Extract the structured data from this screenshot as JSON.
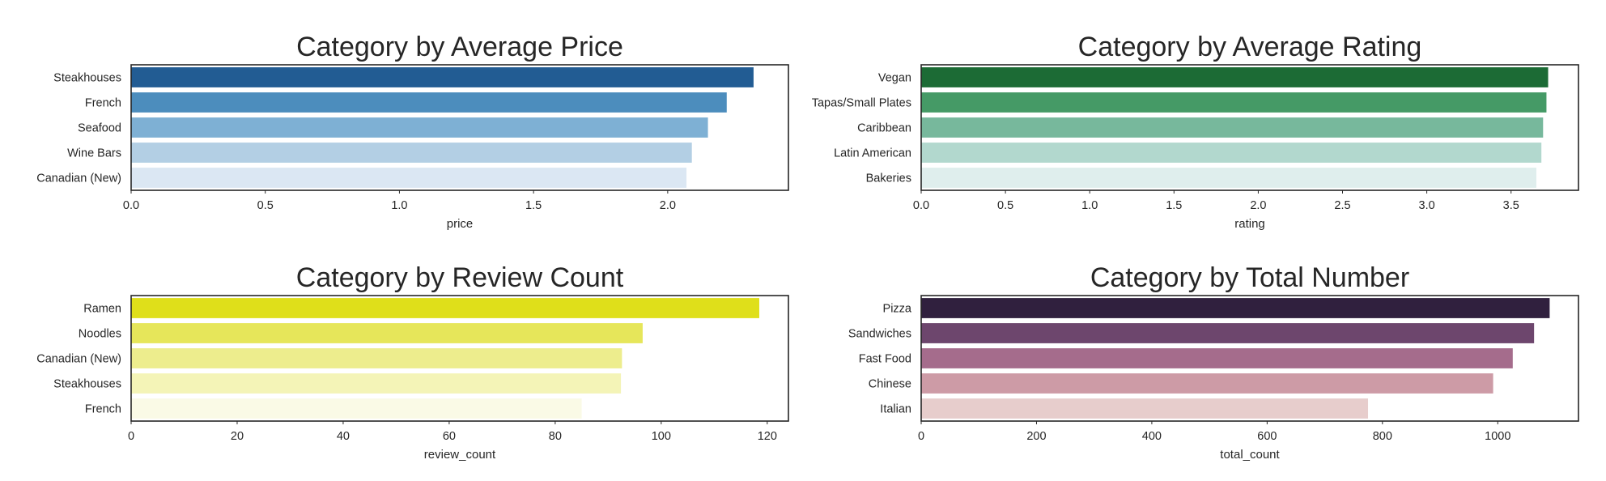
{
  "chart_data": [
    {
      "type": "bar",
      "orientation": "horizontal",
      "title": "Category by Average Price",
      "xlabel": "price",
      "ylabel": "",
      "categories": [
        "Steakhouses",
        "French",
        "Seafood",
        "Wine Bars",
        "Canadian (New)"
      ],
      "values": [
        2.32,
        2.22,
        2.15,
        2.09,
        2.07
      ],
      "xlim": [
        0,
        2.45
      ],
      "xticks": [
        0.0,
        0.5,
        1.0,
        1.5,
        2.0
      ],
      "xtick_labels": [
        "0.0",
        "0.5",
        "1.0",
        "1.5",
        "2.0"
      ],
      "colors": [
        "#225c93",
        "#4c8dbd",
        "#7eb0d4",
        "#b3cfe4",
        "#dbe7f3"
      ],
      "grid": false
    },
    {
      "type": "bar",
      "orientation": "horizontal",
      "title": "Category by Average Rating",
      "xlabel": "rating",
      "ylabel": "",
      "categories": [
        "Vegan",
        "Tapas/Small Plates",
        "Caribbean",
        "Latin American",
        "Bakeries"
      ],
      "values": [
        3.72,
        3.71,
        3.69,
        3.68,
        3.65
      ],
      "xlim": [
        0,
        3.9
      ],
      "xticks": [
        0.0,
        0.5,
        1.0,
        1.5,
        2.0,
        2.5,
        3.0,
        3.5
      ],
      "xtick_labels": [
        "0.0",
        "0.5",
        "1.0",
        "1.5",
        "2.0",
        "2.5",
        "3.0",
        "3.5"
      ],
      "colors": [
        "#1c6b35",
        "#459a66",
        "#77b89c",
        "#b2d8ce",
        "#dfeeed"
      ],
      "grid": false
    },
    {
      "type": "bar",
      "orientation": "horizontal",
      "title": "Category by Review Count",
      "xlabel": "review_count",
      "ylabel": "",
      "categories": [
        "Ramen",
        "Noodles",
        "Canadian (New)",
        "Steakhouses",
        "French"
      ],
      "values": [
        118.5,
        96.5,
        92.6,
        92.4,
        85.0
      ],
      "xlim": [
        0,
        124
      ],
      "xticks": [
        0,
        20,
        40,
        60,
        80,
        100,
        120
      ],
      "xtick_labels": [
        "0",
        "20",
        "40",
        "60",
        "80",
        "100",
        "120"
      ],
      "colors": [
        "#dfdf1a",
        "#e6e65a",
        "#eded8d",
        "#f4f4b7",
        "#fafae6"
      ],
      "grid": false
    },
    {
      "type": "bar",
      "orientation": "horizontal",
      "title": "Category by Total Number",
      "xlabel": "total_count",
      "ylabel": "",
      "categories": [
        "Pizza",
        "Sandwiches",
        "Fast Food",
        "Chinese",
        "Italian"
      ],
      "values": [
        1090,
        1063,
        1026,
        992,
        775
      ],
      "xlim": [
        0,
        1140
      ],
      "xticks": [
        0,
        200,
        400,
        600,
        800,
        1000
      ],
      "xtick_labels": [
        "0",
        "200",
        "400",
        "600",
        "800",
        "1000"
      ],
      "colors": [
        "#30203e",
        "#6d466d",
        "#a56c8c",
        "#cd9ba6",
        "#e7cdcc"
      ],
      "grid": false
    }
  ]
}
